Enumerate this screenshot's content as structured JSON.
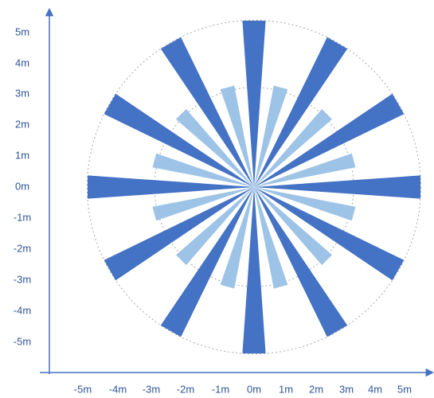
{
  "colors": {
    "axis": "#4472c4",
    "label": "#2f5597",
    "outer_spoke": "#4472c4",
    "inner_spoke": "#9dc3e6",
    "circle": "#a6a6a6"
  },
  "y_ticks": [
    "5m",
    "4m",
    "3m",
    "2m",
    "1m",
    "0m",
    "-1m",
    "-2m",
    "-3m",
    "-4m",
    "-5m"
  ],
  "x_ticks": [
    "-5m",
    "-4m",
    "-3m",
    "-2m",
    "-1m",
    "0m",
    "1m",
    "2m",
    "3m",
    "4m",
    "5m"
  ],
  "chart_data": {
    "type": "radial-spoke-pattern",
    "units": "m",
    "xlim": [
      -5,
      5
    ],
    "ylim": [
      -5,
      5
    ],
    "outer_circle_radius": 5,
    "inner_circle_radius": 3.1,
    "outer_spokes": {
      "count": 12,
      "angle_step_deg": 30,
      "angles_deg": [
        0,
        30,
        60,
        90,
        120,
        150,
        180,
        210,
        240,
        270,
        300,
        330
      ],
      "length": 5,
      "width_deg": 8
    },
    "inner_spokes": {
      "count": 12,
      "angle_step_deg": 30,
      "angles_deg": [
        15,
        45,
        75,
        105,
        135,
        165,
        195,
        225,
        255,
        285,
        315,
        345
      ],
      "length": 3.1,
      "width_deg": 8
    }
  }
}
